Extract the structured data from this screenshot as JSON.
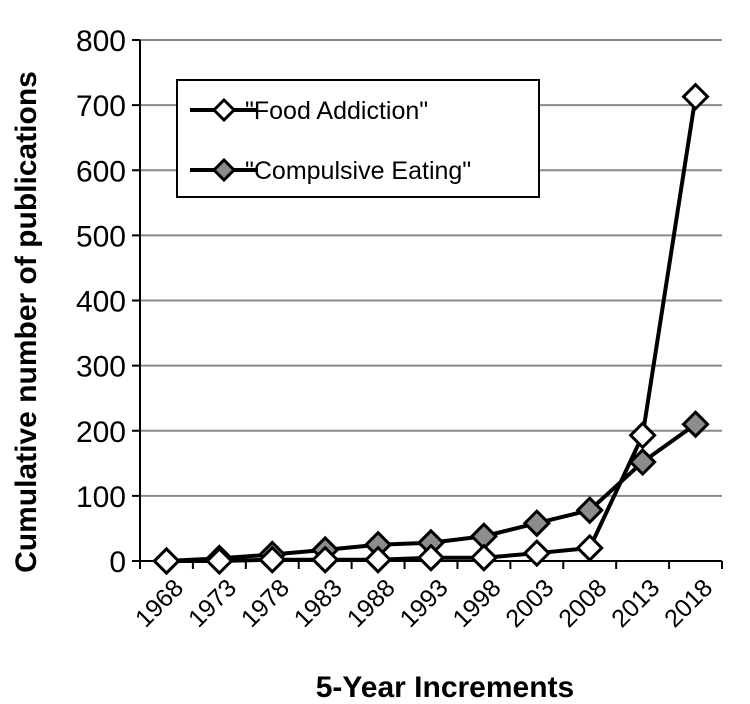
{
  "chart_data": {
    "type": "line",
    "title": "",
    "xlabel": "5-Year Increments",
    "ylabel": "Cumulative number of publications",
    "categories": [
      "1968",
      "1973",
      "1978",
      "1983",
      "1988",
      "1993",
      "1998",
      "2003",
      "2008",
      "2013",
      "2018"
    ],
    "ylim": [
      0,
      800
    ],
    "yticks": [
      0,
      100,
      200,
      300,
      400,
      500,
      600,
      700,
      800
    ],
    "grid": true,
    "legend_position": "top-left",
    "series": [
      {
        "name": "\"Food Addiction\"",
        "marker": "diamond-open",
        "marker_fill": "#ffffff",
        "values": [
          0,
          0,
          2,
          2,
          2,
          5,
          5,
          12,
          20,
          193,
          713
        ]
      },
      {
        "name": "\"Compulsive Eating\"",
        "marker": "diamond-filled",
        "marker_fill": "#8c8c8c",
        "values": [
          0,
          4,
          10,
          17,
          25,
          28,
          38,
          58,
          78,
          152,
          210
        ]
      }
    ],
    "colors": {
      "line": "#000000",
      "grid": "#8a8a8a",
      "axis": "#000000"
    }
  }
}
